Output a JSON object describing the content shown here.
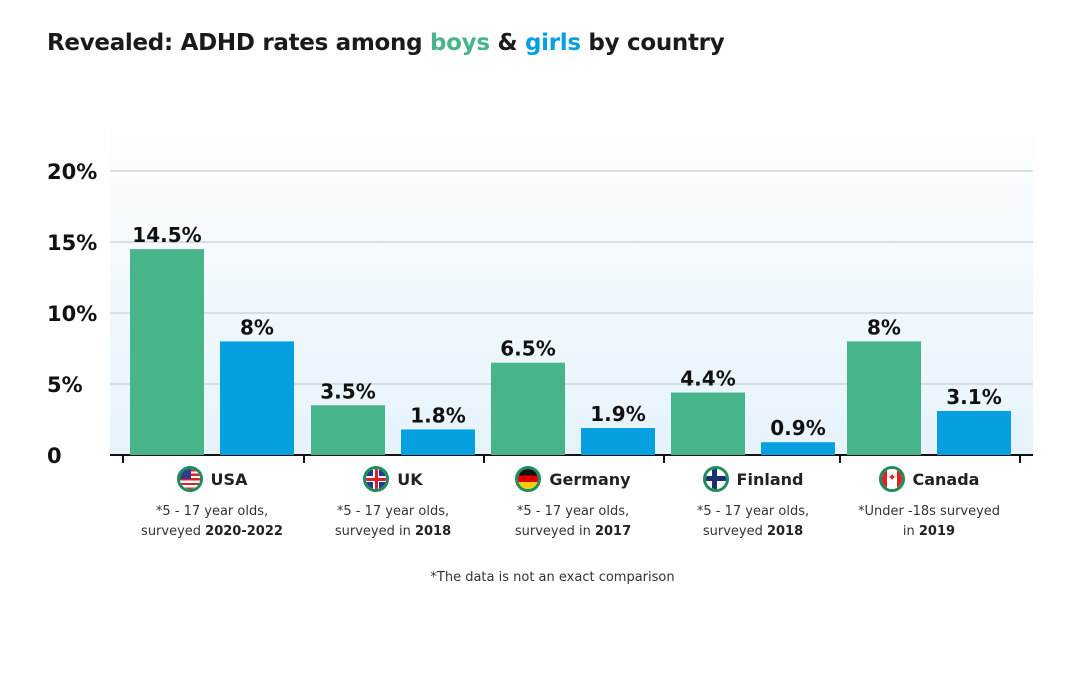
{
  "title": {
    "prefix": "Revealed: ADHD rates among ",
    "boys": "boys",
    "amp": " & ",
    "girls": "girls",
    "suffix": " by country"
  },
  "colors": {
    "boys": "#48b48a",
    "girls": "#069fe0",
    "background_gradient": [
      "#ffffff",
      "#e8f4fb"
    ]
  },
  "chart_data": {
    "type": "bar",
    "categories": [
      "USA",
      "UK",
      "Germany",
      "Finland",
      "Canada"
    ],
    "series": [
      {
        "name": "boys",
        "values": [
          14.5,
          3.5,
          6.5,
          4.4,
          8
        ],
        "labels": [
          "14.5%",
          "3.5%",
          "6.5%",
          "4.4%",
          "8%"
        ]
      },
      {
        "name": "girls",
        "values": [
          8,
          1.8,
          1.9,
          0.9,
          3.1
        ],
        "labels": [
          "8%",
          "1.8%",
          "1.9%",
          "0.9%",
          "3.1%"
        ]
      }
    ],
    "yticks": [
      0,
      5,
      10,
      15,
      20
    ],
    "ytick_labels": [
      "0",
      "5%",
      "10%",
      "15%",
      "20%"
    ],
    "ylim": [
      0,
      20
    ],
    "grid": true,
    "legend": "in title"
  },
  "countries": [
    {
      "name": "USA",
      "flag": "usa-flag-icon",
      "note": "*5 - 17 year olds,",
      "note2": "surveyed ",
      "year": "2020-2022"
    },
    {
      "name": "UK",
      "flag": "uk-flag-icon",
      "note": "*5 - 17 year olds,",
      "note2": "surveyed in ",
      "year": "2018"
    },
    {
      "name": "Germany",
      "flag": "germany-flag-icon",
      "note": "*5 - 17 year olds,",
      "note2": "surveyed in ",
      "year": "2017"
    },
    {
      "name": "Finland",
      "flag": "finland-flag-icon",
      "note": "*5 - 17 year olds,",
      "note2": "surveyed ",
      "year": "2018"
    },
    {
      "name": "Canada",
      "flag": "canada-flag-icon",
      "note": "*Under -18s surveyed",
      "note2": "in ",
      "year": "2019"
    }
  ],
  "footnote": "*The data is not an exact comparison"
}
